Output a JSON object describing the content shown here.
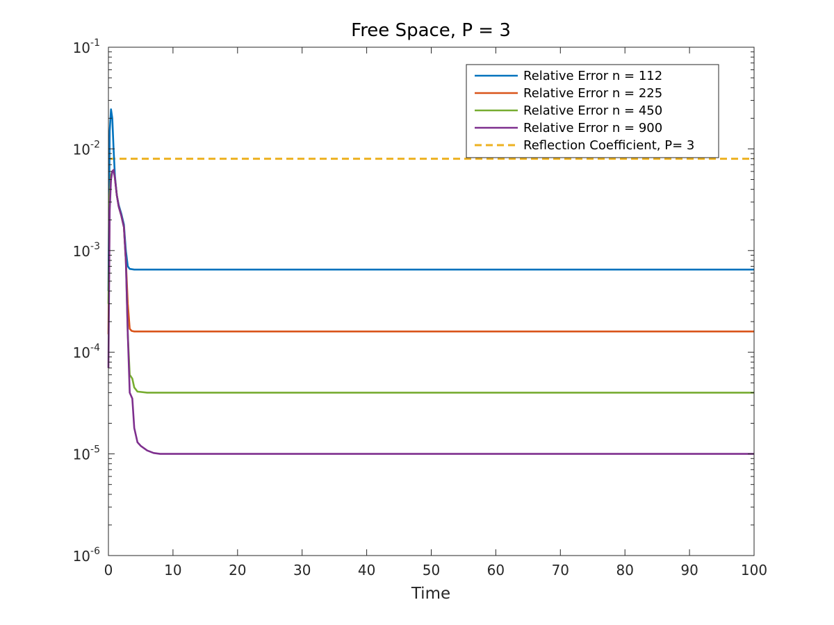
{
  "chart_data": {
    "type": "line",
    "title": "Free Space, P = 3",
    "xlabel": "Time",
    "ylabel": "",
    "xlim": [
      0,
      100
    ],
    "ylim": [
      1e-06,
      0.1
    ],
    "yscale": "log",
    "xticks": [
      "0",
      "10",
      "20",
      "30",
      "40",
      "50",
      "60",
      "70",
      "80",
      "90",
      "100"
    ],
    "yticks": [
      {
        "base": "10",
        "exp": "-6"
      },
      {
        "base": "10",
        "exp": "-5"
      },
      {
        "base": "10",
        "exp": "-4"
      },
      {
        "base": "10",
        "exp": "-3"
      },
      {
        "base": "10",
        "exp": "-2"
      },
      {
        "base": "10",
        "exp": "-1"
      }
    ],
    "grid": false,
    "legend_position": "top-right",
    "series": [
      {
        "name": "Relative Error n = 112",
        "color": "#0072BD",
        "style": "solid",
        "x": [
          0,
          0.2,
          0.4,
          0.6,
          0.8,
          1.0,
          1.3,
          1.6,
          2.0,
          2.4,
          2.7,
          3.0,
          3.3,
          4.0,
          5,
          100
        ],
        "y": [
          0.0004,
          0.015,
          0.0245,
          0.02,
          0.01,
          0.0055,
          0.0035,
          0.0028,
          0.0023,
          0.0018,
          0.001,
          0.0007,
          0.00066,
          0.00065,
          0.00065,
          0.00065
        ]
      },
      {
        "name": "Relative Error n = 225",
        "color": "#D95319",
        "style": "solid",
        "x": [
          0,
          0.2,
          0.4,
          0.6,
          0.8,
          1.0,
          1.3,
          1.6,
          2.0,
          2.4,
          2.7,
          3.0,
          3.3,
          3.6,
          4.0,
          5,
          100
        ],
        "y": [
          0.00015,
          0.003,
          0.0055,
          0.006,
          0.0062,
          0.0052,
          0.0035,
          0.0027,
          0.0022,
          0.0017,
          0.0008,
          0.0003,
          0.00017,
          0.000162,
          0.00016,
          0.00016,
          0.00016
        ]
      },
      {
        "name": "Relative Error n = 450",
        "color": "#77AC30",
        "style": "solid",
        "x": [
          0,
          0.2,
          0.4,
          0.6,
          0.8,
          1.0,
          1.3,
          1.6,
          2.0,
          2.4,
          2.7,
          3.0,
          3.3,
          3.7,
          4.0,
          4.5,
          6,
          100
        ],
        "y": [
          0.0003,
          0.0035,
          0.0055,
          0.006,
          0.0062,
          0.0052,
          0.0035,
          0.0027,
          0.0022,
          0.0017,
          0.0008,
          0.00015,
          6e-05,
          5.5e-05,
          4.5e-05,
          4.1e-05,
          4e-05,
          4e-05
        ]
      },
      {
        "name": "Relative Error n = 900",
        "color": "#7E2F8E",
        "style": "solid",
        "x": [
          0,
          0.2,
          0.4,
          0.6,
          0.8,
          1.0,
          1.3,
          1.6,
          2.0,
          2.4,
          2.7,
          3.0,
          3.3,
          3.7,
          4.0,
          4.5,
          5.0,
          6.0,
          7.0,
          8.0,
          100
        ],
        "y": [
          7e-05,
          0.0025,
          0.005,
          0.006,
          0.0062,
          0.0052,
          0.0035,
          0.0027,
          0.0022,
          0.0017,
          0.0008,
          0.00015,
          4e-05,
          3.5e-05,
          1.8e-05,
          1.3e-05,
          1.2e-05,
          1.08e-05,
          1.02e-05,
          1e-05,
          1e-05
        ]
      },
      {
        "name": "Reflection Coefficient, P= 3",
        "color": "#EDB120",
        "style": "dashed",
        "x": [
          0,
          100
        ],
        "y": [
          0.008,
          0.008
        ]
      }
    ]
  }
}
